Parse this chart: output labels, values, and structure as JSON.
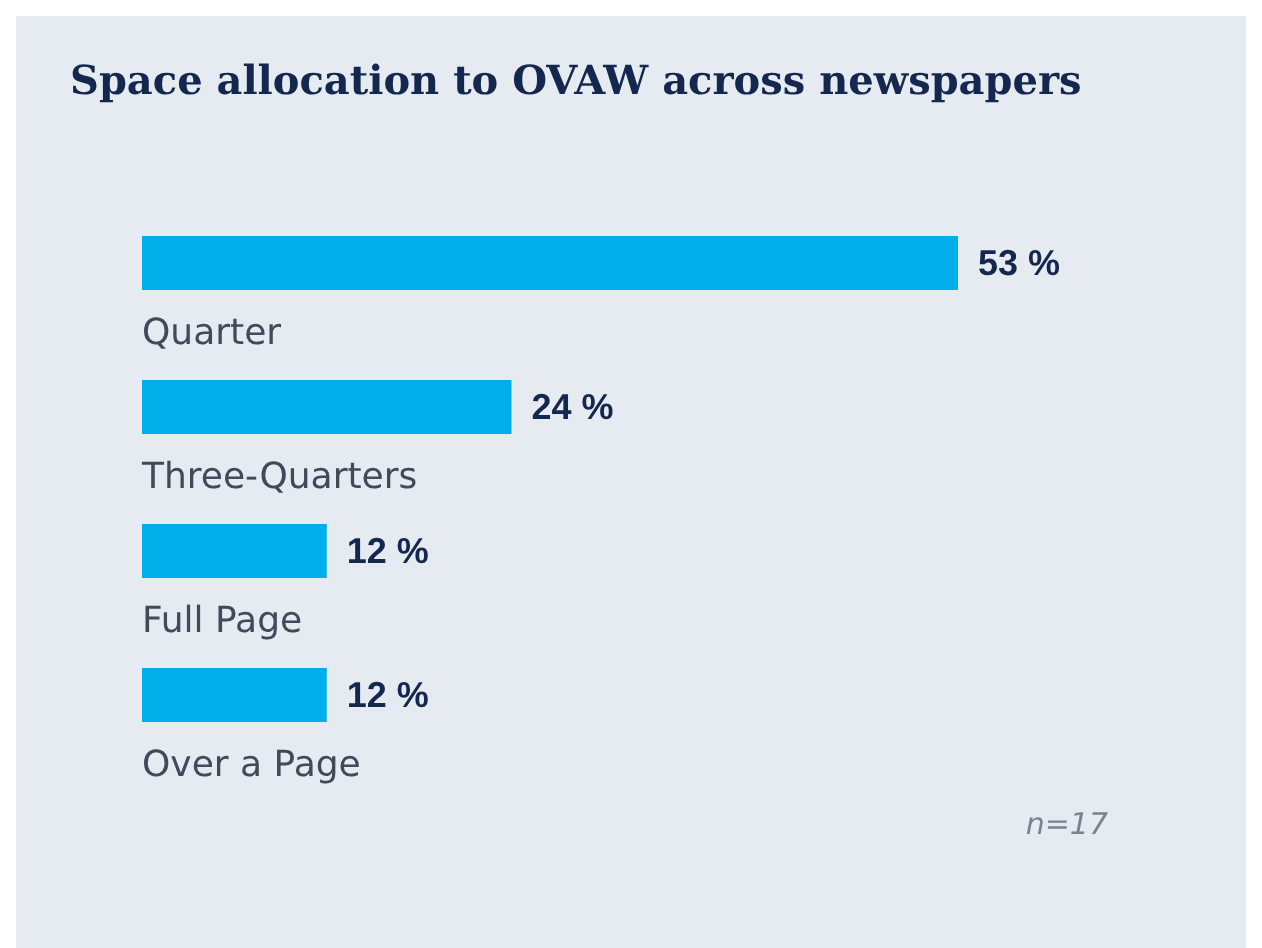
{
  "chart_data": {
    "type": "bar",
    "orientation": "horizontal",
    "title": "Space allocation to OVAW across newspapers",
    "categories": [
      "Quarter",
      "Three-Quarters",
      "Full Page",
      "Over a Page"
    ],
    "values": [
      53,
      24,
      12,
      12
    ],
    "value_labels": [
      "53 %",
      "24 %",
      "12 %",
      "12 %"
    ],
    "color": "#00aeea",
    "annotations": [
      "n=17"
    ]
  }
}
